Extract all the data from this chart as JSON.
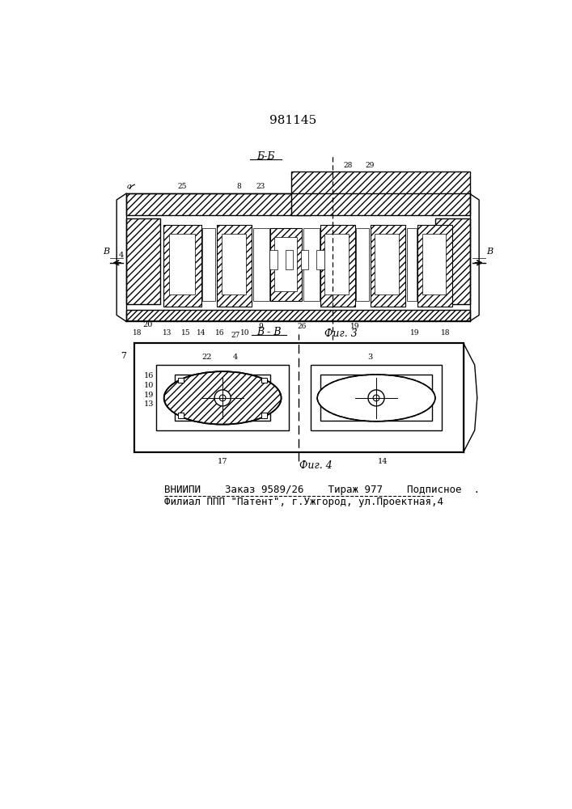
{
  "patent_number": "981145",
  "fig3_label": "Фиг. 3",
  "fig4_label": "Фиг. 4",
  "section_bb": "Б-Б",
  "section_vv": "В-В",
  "footer_line1": "ВНИИПИ    Заказ 9589/26    Тираж 977    Подписное  .",
  "footer_line2": "Филиал ППП \"Патент\", г.Ужгород, ул.Проектная,4",
  "bg_color": "#ffffff",
  "line_color": "#000000",
  "gray_hatch": "#888888"
}
